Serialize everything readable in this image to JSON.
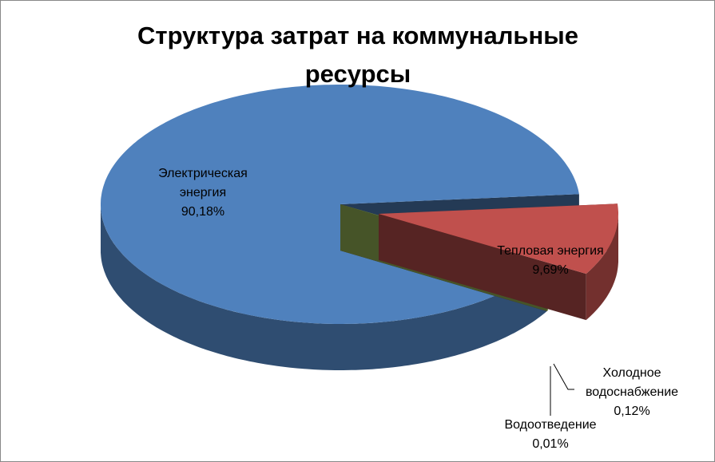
{
  "chart_data": {
    "type": "pie3d",
    "title": "Структура затрат на коммунальные ресурсы",
    "categories": [
      "Электрическая энергия",
      "Тепловая энергия",
      "Холодное водоснабжение",
      "Водоотведение"
    ],
    "values": [
      90.18,
      9.69,
      0.12,
      0.01
    ],
    "value_labels": [
      "90,18%",
      "9,69%",
      "0,12%",
      "0,01%"
    ],
    "colors": [
      "#4f81bd",
      "#c0504d",
      "#9bbb59",
      "#8064a2"
    ]
  }
}
